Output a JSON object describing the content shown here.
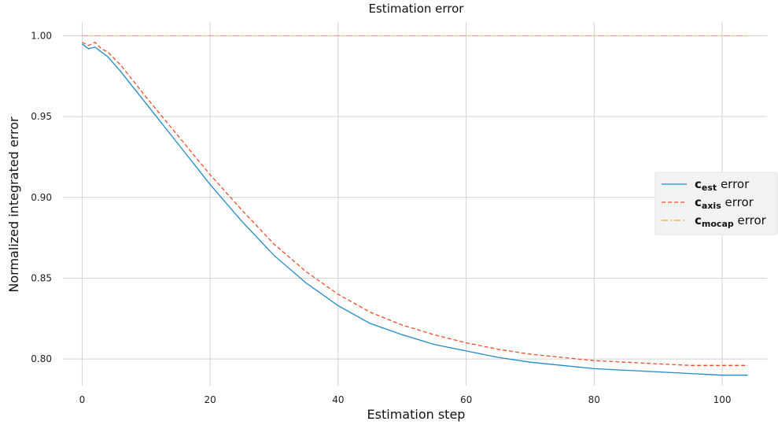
{
  "chart_data": {
    "type": "line",
    "title": "Estimation error",
    "xlabel": "Estimation step",
    "ylabel": "Normalized integrated error",
    "xlim": [
      -3,
      107
    ],
    "ylim": [
      0.7835,
      1.0085
    ],
    "xticks": [
      0,
      20,
      40,
      60,
      80,
      100
    ],
    "xtick_labels": [
      "0",
      "20",
      "40",
      "60",
      "80",
      "100"
    ],
    "yticks": [
      0.8,
      0.85,
      0.9,
      0.95,
      1.0
    ],
    "ytick_labels": [
      "0.80",
      "0.85",
      "0.90",
      "0.95",
      "1.00"
    ],
    "grid": true,
    "legend_position": "center-right",
    "series": [
      {
        "name": "c_est error",
        "legend_base": "c",
        "legend_sub": "est",
        "legend_suffix": " error",
        "color": "#1f8ac7",
        "dash": "solid",
        "x": [
          0,
          1,
          2,
          3,
          4,
          6,
          8,
          10,
          15,
          20,
          25,
          30,
          35,
          40,
          45,
          50,
          55,
          60,
          65,
          70,
          75,
          80,
          85,
          90,
          95,
          100,
          104
        ],
        "y": [
          0.995,
          0.992,
          0.993,
          0.99,
          0.987,
          0.978,
          0.968,
          0.958,
          0.933,
          0.908,
          0.885,
          0.864,
          0.847,
          0.833,
          0.822,
          0.815,
          0.809,
          0.805,
          0.801,
          0.798,
          0.796,
          0.794,
          0.793,
          0.792,
          0.791,
          0.79,
          0.79
        ]
      },
      {
        "name": "c_axis error",
        "legend_base": "c",
        "legend_sub": "axis",
        "legend_suffix": " error",
        "color": "#f04e2a",
        "dash": "dashed",
        "x": [
          0,
          1,
          2,
          3,
          4,
          6,
          8,
          10,
          15,
          20,
          25,
          30,
          35,
          40,
          45,
          50,
          55,
          60,
          65,
          70,
          75,
          80,
          85,
          90,
          95,
          100,
          104
        ],
        "y": [
          0.996,
          0.994,
          0.996,
          0.992,
          0.99,
          0.982,
          0.972,
          0.962,
          0.938,
          0.914,
          0.892,
          0.871,
          0.854,
          0.84,
          0.829,
          0.821,
          0.815,
          0.81,
          0.806,
          0.803,
          0.801,
          0.799,
          0.798,
          0.797,
          0.796,
          0.796,
          0.796
        ]
      },
      {
        "name": "c_mocap error",
        "legend_base": "c",
        "legend_sub": "mocap",
        "legend_suffix": " error",
        "color": "#f2b134",
        "dash": "dashdot",
        "x": [
          0,
          104
        ],
        "y": [
          1.0,
          1.0
        ]
      }
    ]
  }
}
